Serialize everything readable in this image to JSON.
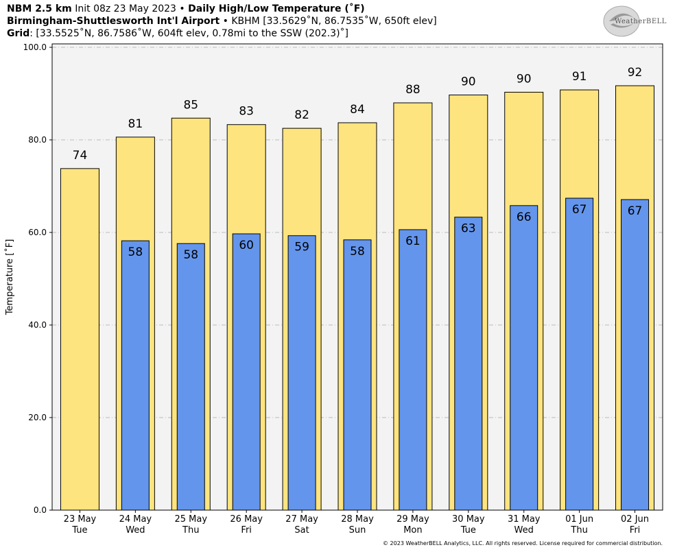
{
  "header": {
    "line1_bold": "NBM 2.5 km",
    "line1_text": " Init 08z 23 May 2023 • ",
    "line1_title": "Daily High/Low Temperature (˚F)",
    "line2_bold": "Birmingham-Shuttlesworth Int'l Airport",
    "line2_text": " • KBHM [33.5629˚N, 86.7535˚W, 650ft elev]",
    "line3_bold": "Grid",
    "line3_text": ": [33.5525˚N, 86.7586˚W, 604ft elev, 0.78mi to the SSW (202.3)˚]"
  },
  "logo": {
    "text": "WeatherBELL",
    "icon": "swirl-logo-icon"
  },
  "footer": "© 2023 WeatherBELL Analytics, LLC. All rights reserved. License required for commercial distribution.",
  "colors": {
    "high": "#fee47f",
    "low": "#6495ec",
    "plot_bg": "#f3f3f3",
    "grid": "#bbbbbb"
  },
  "chart_data": {
    "type": "bar",
    "ylabel": "Temperature [˚F]",
    "ylim": [
      0,
      100
    ],
    "yticks": [
      "0.0",
      "20.0",
      "40.0",
      "60.0",
      "80.0",
      "100.0"
    ],
    "grid": true,
    "categories": [
      [
        "23 May",
        "Tue"
      ],
      [
        "24 May",
        "Wed"
      ],
      [
        "25 May",
        "Thu"
      ],
      [
        "26 May",
        "Fri"
      ],
      [
        "27 May",
        "Sat"
      ],
      [
        "28 May",
        "Sun"
      ],
      [
        "29 May",
        "Mon"
      ],
      [
        "30 May",
        "Tue"
      ],
      [
        "31 May",
        "Wed"
      ],
      [
        "01 Jun",
        "Thu"
      ],
      [
        "02 Jun",
        "Fri"
      ]
    ],
    "series": [
      {
        "values": [
          73.8,
          80.6,
          84.7,
          83.3,
          82.5,
          83.7,
          88.0,
          89.7,
          90.3,
          90.8,
          91.7
        ],
        "labels": [
          "74",
          "81",
          "85",
          "83",
          "82",
          "84",
          "88",
          "90",
          "90",
          "91",
          "92"
        ]
      },
      {
        "values": [
          null,
          58.2,
          57.6,
          59.7,
          59.3,
          58.4,
          60.6,
          63.3,
          65.8,
          67.4,
          67.1
        ],
        "labels": [
          "",
          "58",
          "58",
          "60",
          "59",
          "58",
          "61",
          "63",
          "66",
          "67",
          "67"
        ]
      }
    ]
  }
}
